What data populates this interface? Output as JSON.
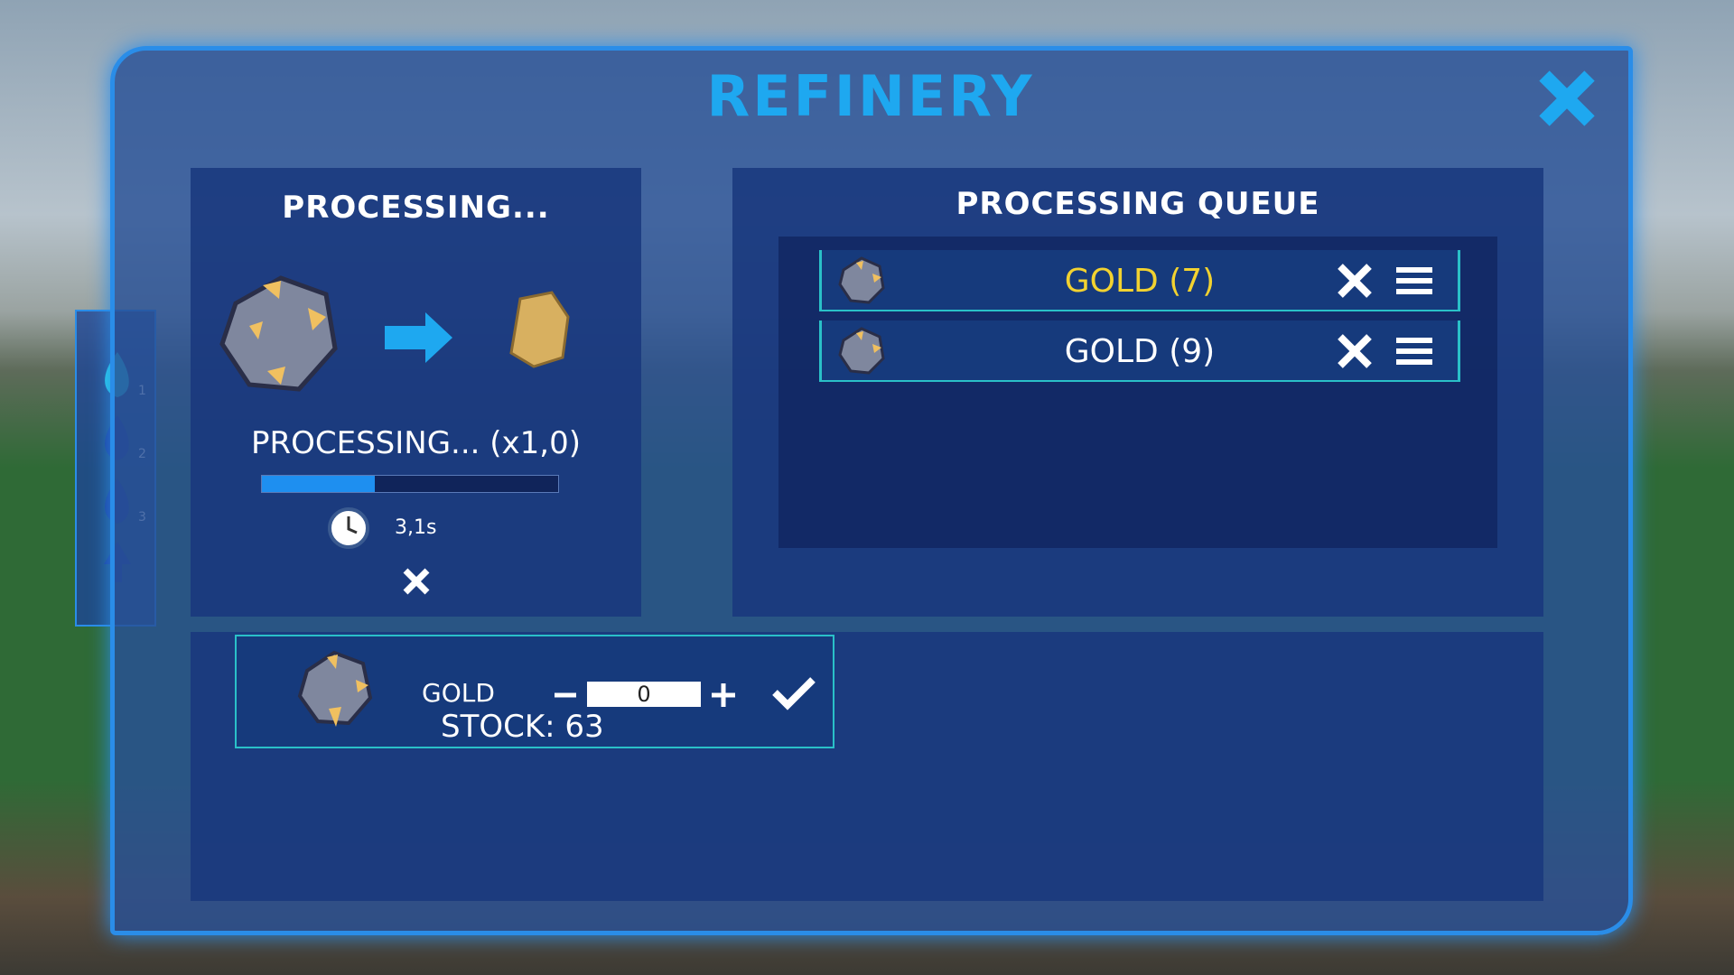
{
  "header": {
    "title": "REFINERY"
  },
  "processing": {
    "title": "PROCESSING...",
    "status": "PROCESSING... (x1,0)",
    "progress": 38,
    "timer": "3,1s"
  },
  "tiers": [
    "1",
    "2",
    "3"
  ],
  "queue": {
    "title": "PROCESSING QUEUE",
    "items": [
      {
        "label": "GOLD (7)"
      },
      {
        "label": "GOLD (9)"
      }
    ]
  },
  "recipe": {
    "name": "GOLD",
    "amount": "0",
    "stock": "STOCK: 63"
  }
}
